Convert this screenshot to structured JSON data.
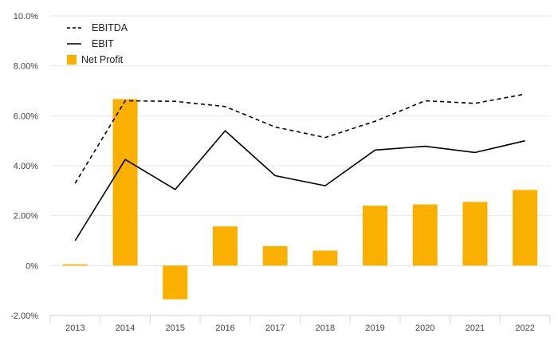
{
  "chart_data": {
    "type": "bar",
    "categories": [
      "2013",
      "2014",
      "2015",
      "2016",
      "2017",
      "2018",
      "2019",
      "2020",
      "2021",
      "2022"
    ],
    "series": [
      {
        "name": "EBITDA",
        "kind": "line",
        "style": "dashed",
        "color": "#000000",
        "values": [
          3.3,
          6.6,
          6.58,
          6.37,
          5.55,
          5.13,
          5.78,
          6.6,
          6.5,
          6.87
        ]
      },
      {
        "name": "EBIT",
        "kind": "line",
        "style": "solid",
        "color": "#000000",
        "values": [
          1.0,
          4.25,
          3.05,
          5.4,
          3.6,
          3.2,
          4.63,
          4.78,
          4.53,
          5.0
        ]
      },
      {
        "name": "Net Profit",
        "kind": "bar",
        "color": "#F9B000",
        "values": [
          0.05,
          6.67,
          -1.35,
          1.57,
          0.78,
          0.6,
          2.4,
          2.45,
          2.55,
          3.03
        ]
      }
    ],
    "y_ticks": [
      "-2.00%",
      "0%",
      "2.00%",
      "4.00%",
      "6.00%",
      "8.00%",
      "10.0%"
    ],
    "ylim": [
      -2,
      10
    ],
    "ylabel": "",
    "xlabel": "",
    "title": "",
    "legend": {
      "position": "top-left",
      "items": [
        "EBITDA",
        "EBIT",
        "Net Profit"
      ]
    },
    "grid": "horizontal"
  }
}
